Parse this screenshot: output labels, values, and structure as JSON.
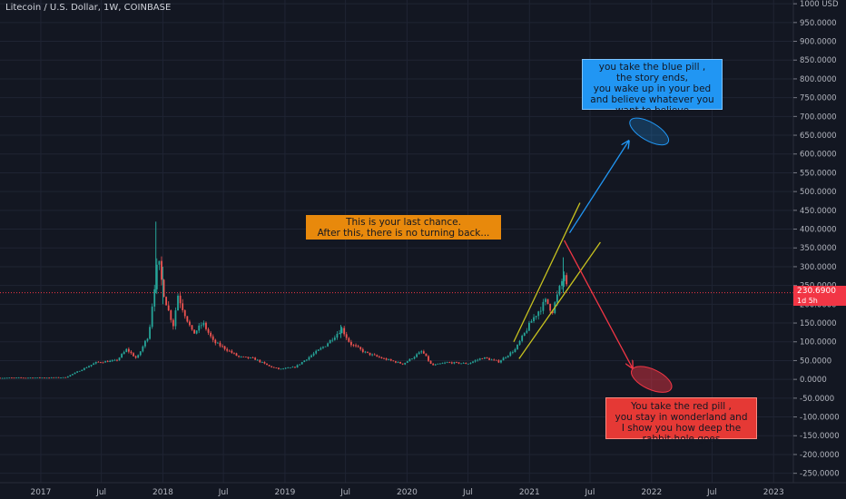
{
  "symbol_title": "Litecoin / U.S. Dollar, 1W, COINBASE",
  "current_price": "230.6900",
  "countdown": "1d 5h",
  "colors": {
    "background": "#131722",
    "grid": "#1f2433",
    "up": "#26a69a",
    "down": "#ef5350",
    "wedge": "#c7c21f",
    "blue_arrow": "#2196f3",
    "red_arrow": "#f23645",
    "price_line": "#f23645"
  },
  "annotations": {
    "orange_note": "This is your last chance.\nAfter this, there is no turning back...",
    "blue_note": "you take the blue pill ,\nthe story ends,\nyou wake up in your bed\nand believe whatever you\nwant to believe",
    "red_note": "You take the red pill ,\nyou stay in wonderland and\nI show you how deep the\nrabbit-hole goes"
  },
  "chart_data": {
    "type": "candlestick",
    "x_tick_labels": [
      "2017",
      "Jul",
      "2018",
      "Jul",
      "2019",
      "Jul",
      "2020",
      "Jul",
      "2021",
      "Jul",
      "2022",
      "Jul",
      "2023"
    ],
    "y_tick_labels": [
      "1000.0000",
      "950.0000",
      "900.0000",
      "850.0000",
      "800.0000",
      "750.0000",
      "700.0000",
      "650.0000",
      "600.0000",
      "550.0000",
      "500.0000",
      "450.0000",
      "400.0000",
      "350.0000",
      "300.0000",
      "250.0000",
      "200.0000",
      "150.0000",
      "100.0000",
      "50.0000",
      "0.0000",
      "-50.0000",
      "-100.0000",
      "-150.0000",
      "-200.0000",
      "-250.0000"
    ],
    "y_axis_unit": "USD",
    "ylim": [
      -275,
      1010
    ],
    "xlim": [
      "2016-09-01",
      "2023-03-01"
    ],
    "current_price_value": 230.69,
    "price_path": [
      [
        "2016-09-01",
        4
      ],
      [
        "2017-01-01",
        4.5
      ],
      [
        "2017-03-15",
        5
      ],
      [
        "2017-05-01",
        25
      ],
      [
        "2017-06-15",
        45
      ],
      [
        "2017-08-15",
        50
      ],
      [
        "2017-09-15",
        80
      ],
      [
        "2017-10-15",
        55
      ],
      [
        "2017-11-20",
        120
      ],
      [
        "2017-12-04",
        230
      ],
      [
        "2017-12-18",
        320
      ],
      [
        "2018-01-01",
        240
      ],
      [
        "2018-01-15",
        190
      ],
      [
        "2018-02-01",
        145
      ],
      [
        "2018-02-15",
        225
      ],
      [
        "2018-03-01",
        190
      ],
      [
        "2018-04-01",
        120
      ],
      [
        "2018-05-01",
        150
      ],
      [
        "2018-06-01",
        100
      ],
      [
        "2018-07-01",
        85
      ],
      [
        "2018-08-15",
        60
      ],
      [
        "2018-10-01",
        55
      ],
      [
        "2018-11-15",
        35
      ],
      [
        "2018-12-15",
        27
      ],
      [
        "2019-02-01",
        33
      ],
      [
        "2019-03-15",
        60
      ],
      [
        "2019-05-01",
        90
      ],
      [
        "2019-06-20",
        135
      ],
      [
        "2019-07-15",
        95
      ],
      [
        "2019-09-01",
        70
      ],
      [
        "2019-10-15",
        57
      ],
      [
        "2019-12-20",
        41
      ],
      [
        "2020-02-15",
        75
      ],
      [
        "2020-03-15",
        37
      ],
      [
        "2020-05-01",
        45
      ],
      [
        "2020-07-01",
        42
      ],
      [
        "2020-08-15",
        58
      ],
      [
        "2020-10-01",
        47
      ],
      [
        "2020-11-20",
        80
      ],
      [
        "2021-01-10",
        160
      ],
      [
        "2021-02-20",
        210
      ],
      [
        "2021-03-10",
        180
      ],
      [
        "2021-04-15",
        280
      ],
      [
        "2021-04-25",
        230.69
      ]
    ],
    "drawings": {
      "wedge_upper": [
        [
          "2020-11-15",
          100
        ],
        [
          "2021-06-01",
          470
        ]
      ],
      "wedge_lower": [
        [
          "2020-12-01",
          55
        ],
        [
          "2021-08-01",
          365
        ]
      ],
      "blue_arrow": [
        [
          "2021-05-01",
          390
        ],
        [
          "2021-10-25",
          635
        ]
      ],
      "red_arrow": [
        [
          "2021-04-15",
          370
        ],
        [
          "2021-11-05",
          30
        ]
      ],
      "blue_ellipse_center": [
        "2021-12-25",
        660
      ],
      "red_ellipse_center": [
        "2022-01-01",
        0
      ]
    }
  }
}
